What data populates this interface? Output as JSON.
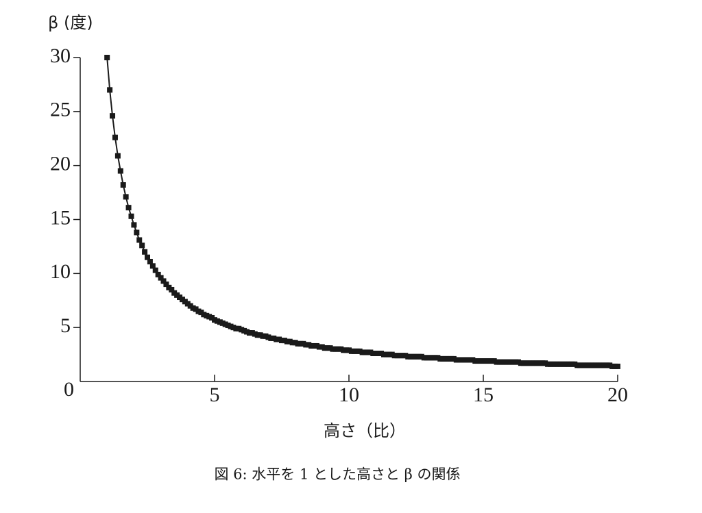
{
  "chart_data": {
    "type": "line",
    "ylabel": "β (度)",
    "xlabel": "高さ（比）",
    "caption": "図 6: 水平を 1 とした高さと β の関係",
    "xlim": [
      0,
      20
    ],
    "xticks": [
      5,
      10,
      15,
      20
    ],
    "ylim": [
      0,
      30
    ],
    "yticks": [
      0,
      5,
      10,
      15,
      20,
      25,
      30
    ],
    "x": [
      1,
      1.1,
      1.2,
      1.3,
      1.4,
      1.5,
      1.6,
      1.7,
      1.8,
      1.9,
      2,
      2.1,
      2.2,
      2.3,
      2.4,
      2.5,
      2.6,
      2.7,
      2.8,
      2.9,
      3,
      3.1,
      3.2,
      3.3,
      3.4,
      3.5,
      3.6,
      3.7,
      3.8,
      3.9,
      4,
      4.1,
      4.2,
      4.3,
      4.4,
      4.5,
      4.6,
      4.7,
      4.8,
      4.9,
      5,
      5.1,
      5.2,
      5.3,
      5.4,
      5.5,
      5.6,
      5.7,
      5.8,
      5.9,
      6,
      6.1,
      6.2,
      6.3,
      6.4,
      6.5,
      6.6,
      6.7,
      6.8,
      6.9,
      7,
      7.1,
      7.2,
      7.3,
      7.4,
      7.5,
      7.6,
      7.7,
      7.8,
      7.9,
      8,
      8.1,
      8.2,
      8.3,
      8.4,
      8.5,
      8.6,
      8.7,
      8.8,
      8.9,
      9,
      9.1,
      9.2,
      9.3,
      9.4,
      9.5,
      9.6,
      9.7,
      9.8,
      9.9,
      10,
      10.1,
      10.2,
      10.3,
      10.4,
      10.5,
      10.6,
      10.7,
      10.8,
      10.9,
      11,
      11.1,
      11.2,
      11.3,
      11.4,
      11.5,
      11.6,
      11.7,
      11.8,
      11.9,
      12,
      12.1,
      12.2,
      12.3,
      12.4,
      12.5,
      12.6,
      12.7,
      12.8,
      12.9,
      13,
      13.1,
      13.2,
      13.3,
      13.4,
      13.5,
      13.6,
      13.7,
      13.8,
      13.9,
      14,
      14.1,
      14.2,
      14.3,
      14.4,
      14.5,
      14.6,
      14.7,
      14.8,
      14.9,
      15,
      15.1,
      15.2,
      15.3,
      15.4,
      15.5,
      15.6,
      15.7,
      15.8,
      15.9,
      16,
      16.1,
      16.2,
      16.3,
      16.4,
      16.5,
      16.6,
      16.7,
      16.8,
      16.9,
      17,
      17.1,
      17.2,
      17.3,
      17.4,
      17.5,
      17.6,
      17.7,
      17.8,
      17.9,
      18,
      18.1,
      18.2,
      18.3,
      18.4,
      18.5,
      18.6,
      18.7,
      18.8,
      18.9,
      19,
      19.1,
      19.2,
      19.3,
      19.4,
      19.5,
      19.6,
      19.7,
      19.8,
      19.9,
      20
    ],
    "series": [
      {
        "color": "#1a1a1a",
        "values": [
          30,
          27,
          24.6,
          22.6,
          20.9,
          19.5,
          18.2,
          17.1,
          16.1,
          15.3,
          14.5,
          13.8,
          13.1,
          12.6,
          12,
          11.5,
          11.1,
          10.7,
          10.3,
          9.9,
          9.6,
          9.3,
          9,
          8.7,
          8.5,
          8.2,
          8,
          7.8,
          7.6,
          7.4,
          7.2,
          7,
          6.8,
          6.7,
          6.5,
          6.4,
          6.2,
          6.1,
          6,
          5.9,
          5.7,
          5.6,
          5.5,
          5.4,
          5.3,
          5.2,
          5.1,
          5,
          4.9,
          4.9,
          4.8,
          4.7,
          4.6,
          4.5,
          4.5,
          4.4,
          4.3,
          4.3,
          4.2,
          4.2,
          4.1,
          4,
          4,
          3.9,
          3.9,
          3.8,
          3.8,
          3.7,
          3.7,
          3.6,
          3.6,
          3.5,
          3.5,
          3.5,
          3.4,
          3.4,
          3.3,
          3.3,
          3.3,
          3.2,
          3.2,
          3.1,
          3.1,
          3.1,
          3,
          3,
          3,
          3,
          2.9,
          2.9,
          2.9,
          2.8,
          2.8,
          2.8,
          2.8,
          2.7,
          2.7,
          2.7,
          2.7,
          2.6,
          2.6,
          2.6,
          2.6,
          2.5,
          2.5,
          2.5,
          2.5,
          2.4,
          2.4,
          2.4,
          2.4,
          2.4,
          2.3,
          2.3,
          2.3,
          2.3,
          2.3,
          2.3,
          2.2,
          2.2,
          2.2,
          2.2,
          2.2,
          2.2,
          2.1,
          2.1,
          2.1,
          2.1,
          2.1,
          2.1,
          2,
          2,
          2,
          2,
          2,
          2,
          2,
          1.9,
          1.9,
          1.9,
          1.9,
          1.9,
          1.9,
          1.9,
          1.9,
          1.8,
          1.8,
          1.8,
          1.8,
          1.8,
          1.8,
          1.8,
          1.8,
          1.8,
          1.7,
          1.7,
          1.7,
          1.7,
          1.7,
          1.7,
          1.7,
          1.7,
          1.7,
          1.7,
          1.6,
          1.6,
          1.6,
          1.6,
          1.6,
          1.6,
          1.6,
          1.6,
          1.6,
          1.6,
          1.6,
          1.5,
          1.5,
          1.5,
          1.5,
          1.5,
          1.5,
          1.5,
          1.5,
          1.5,
          1.5,
          1.5,
          1.5,
          1.5,
          1.4,
          1.4,
          1.4
        ]
      }
    ]
  }
}
